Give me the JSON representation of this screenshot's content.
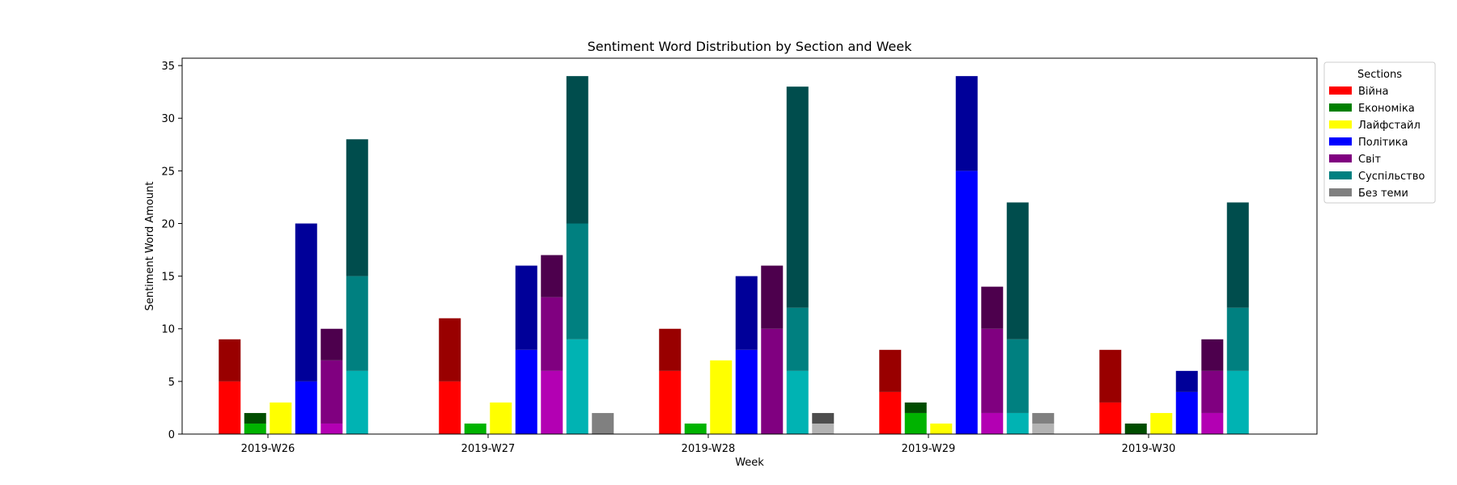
{
  "chart_data": {
    "type": "bar",
    "stacked": true,
    "title": "Sentiment Word Distribution by Section and Week",
    "xlabel": "Week",
    "ylabel": "Sentiment Word Amount",
    "ylim": [
      0,
      35.7
    ],
    "yticks": [
      0,
      5,
      10,
      15,
      20,
      25,
      30,
      35
    ],
    "grid": false,
    "legend": {
      "title": "Sections",
      "placement": "outside-upper-right"
    },
    "categories": [
      "2019-W26",
      "2019-W27",
      "2019-W28",
      "2019-W29",
      "2019-W30"
    ],
    "series": [
      {
        "name": "Війна",
        "color": "#ff0000",
        "shades": [
          "#ff0000",
          "#990000"
        ],
        "segments": [
          [
            5,
            4
          ],
          [
            5,
            6
          ],
          [
            6,
            4
          ],
          [
            4,
            4
          ],
          [
            3,
            5
          ]
        ]
      },
      {
        "name": "Економіка",
        "color": "#008000",
        "shades": [
          "#00b300",
          "#004d00"
        ],
        "segments": [
          [
            1,
            1
          ],
          [
            1,
            0
          ],
          [
            1,
            0
          ],
          [
            2,
            1
          ],
          [
            0,
            1
          ]
        ]
      },
      {
        "name": "Лайфстайл",
        "color": "#ffff00",
        "shades": [
          "#ffff00",
          "#999900"
        ],
        "segments": [
          [
            3,
            0
          ],
          [
            3,
            0
          ],
          [
            7,
            0
          ],
          [
            1,
            0
          ],
          [
            2,
            0
          ]
        ]
      },
      {
        "name": "Політика",
        "color": "#0000ff",
        "shades": [
          "#0000ff",
          "#000099"
        ],
        "segments": [
          [
            5,
            15
          ],
          [
            8,
            8
          ],
          [
            8,
            7
          ],
          [
            25,
            9
          ],
          [
            4,
            2
          ]
        ]
      },
      {
        "name": "Світ",
        "color": "#800080",
        "shades": [
          "#b300b3",
          "#800080",
          "#4d004d"
        ],
        "segments": [
          [
            1,
            6,
            3
          ],
          [
            6,
            7,
            4
          ],
          [
            0,
            10,
            6
          ],
          [
            2,
            8,
            4
          ],
          [
            2,
            4,
            3
          ]
        ]
      },
      {
        "name": "Суспільство",
        "color": "#008080",
        "shades": [
          "#00b3b3",
          "#008080",
          "#004d4d"
        ],
        "segments": [
          [
            6,
            9,
            13
          ],
          [
            9,
            11,
            14
          ],
          [
            6,
            6,
            21
          ],
          [
            2,
            7,
            13
          ],
          [
            6,
            6,
            10
          ]
        ]
      },
      {
        "name": "Без теми",
        "color": "#808080",
        "shades": [
          "#b3b3b3",
          "#808080",
          "#4d4d4d"
        ],
        "segments": [
          [
            0,
            0,
            0
          ],
          [
            0,
            2,
            0
          ],
          [
            1,
            0,
            1
          ],
          [
            1,
            1,
            0
          ],
          [
            0,
            0,
            0
          ]
        ]
      }
    ]
  }
}
